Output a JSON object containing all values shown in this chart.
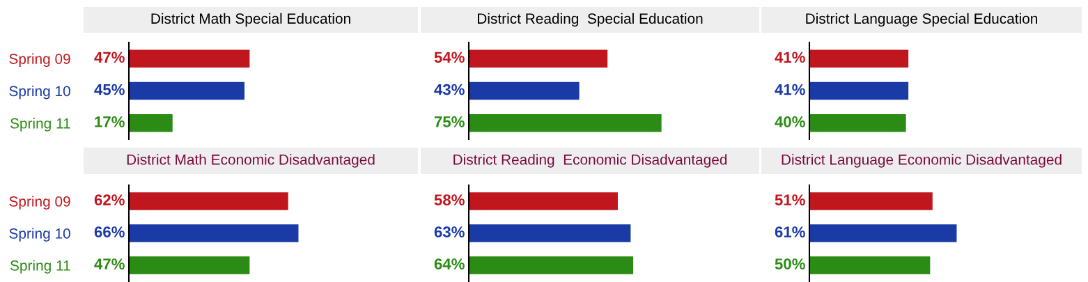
{
  "chart_data": [
    {
      "type": "bar",
      "orientation": "horizontal",
      "title": "District Math Special Education",
      "categories": [
        "Spring 09",
        "Spring 10",
        "Spring 11"
      ],
      "values": [
        47,
        45,
        17
      ],
      "colors": [
        "#c0161e",
        "#1a3aa6",
        "#2a8c14"
      ],
      "value_labels": [
        "47%",
        "45%",
        "17%"
      ],
      "tick_labels": "y"
    },
    {
      "type": "bar",
      "orientation": "horizontal",
      "title": "District Reading  Special Education",
      "categories": [
        null,
        null,
        null
      ],
      "values": [
        54,
        43,
        75
      ],
      "colors": [
        "#c0161e",
        "#1a3aa6",
        "#2a8c14"
      ],
      "value_labels": [
        "54%",
        "43%",
        "75%"
      ],
      "tick_labels": false
    },
    {
      "type": "bar",
      "orientation": "horizontal",
      "title": "District Language Special Education",
      "categories": [
        null,
        null,
        null
      ],
      "values": [
        41,
        41,
        40
      ],
      "colors": [
        "#c0161e",
        "#1a3aa6",
        "#2a8c14"
      ],
      "value_labels": [
        "41%",
        "41%",
        "40%"
      ],
      "tick_labels": false
    },
    {
      "type": "bar",
      "orientation": "horizontal",
      "title": "District Math Economic Disadvantaged",
      "categories": [
        "Spring 09",
        "Spring 10",
        "Spring 11"
      ],
      "values": [
        62,
        66,
        47
      ],
      "colors": [
        "#c0161e",
        "#1a3aa6",
        "#2a8c14"
      ],
      "value_labels": [
        "62%",
        "66%",
        "47%"
      ],
      "tick_labels": "y"
    },
    {
      "type": "bar",
      "orientation": "horizontal",
      "title": "District Reading  Economic Disadvantaged",
      "categories": [
        null,
        null,
        null
      ],
      "values": [
        58,
        63,
        64
      ],
      "colors": [
        "#c0161e",
        "#1a3aa6",
        "#2a8c14"
      ],
      "value_labels": [
        "58%",
        "63%",
        "64%"
      ],
      "tick_labels": false
    },
    {
      "type": "bar",
      "orientation": "horizontal",
      "title": "District Language Economic Disadvantaged",
      "categories": [
        null,
        null,
        null
      ],
      "values": [
        51,
        61,
        50
      ],
      "colors": [
        "#c0161e",
        "#1a3aa6",
        "#2a8c14"
      ],
      "value_labels": [
        "51%",
        "61%",
        "50%"
      ],
      "tick_labels": false
    }
  ]
}
